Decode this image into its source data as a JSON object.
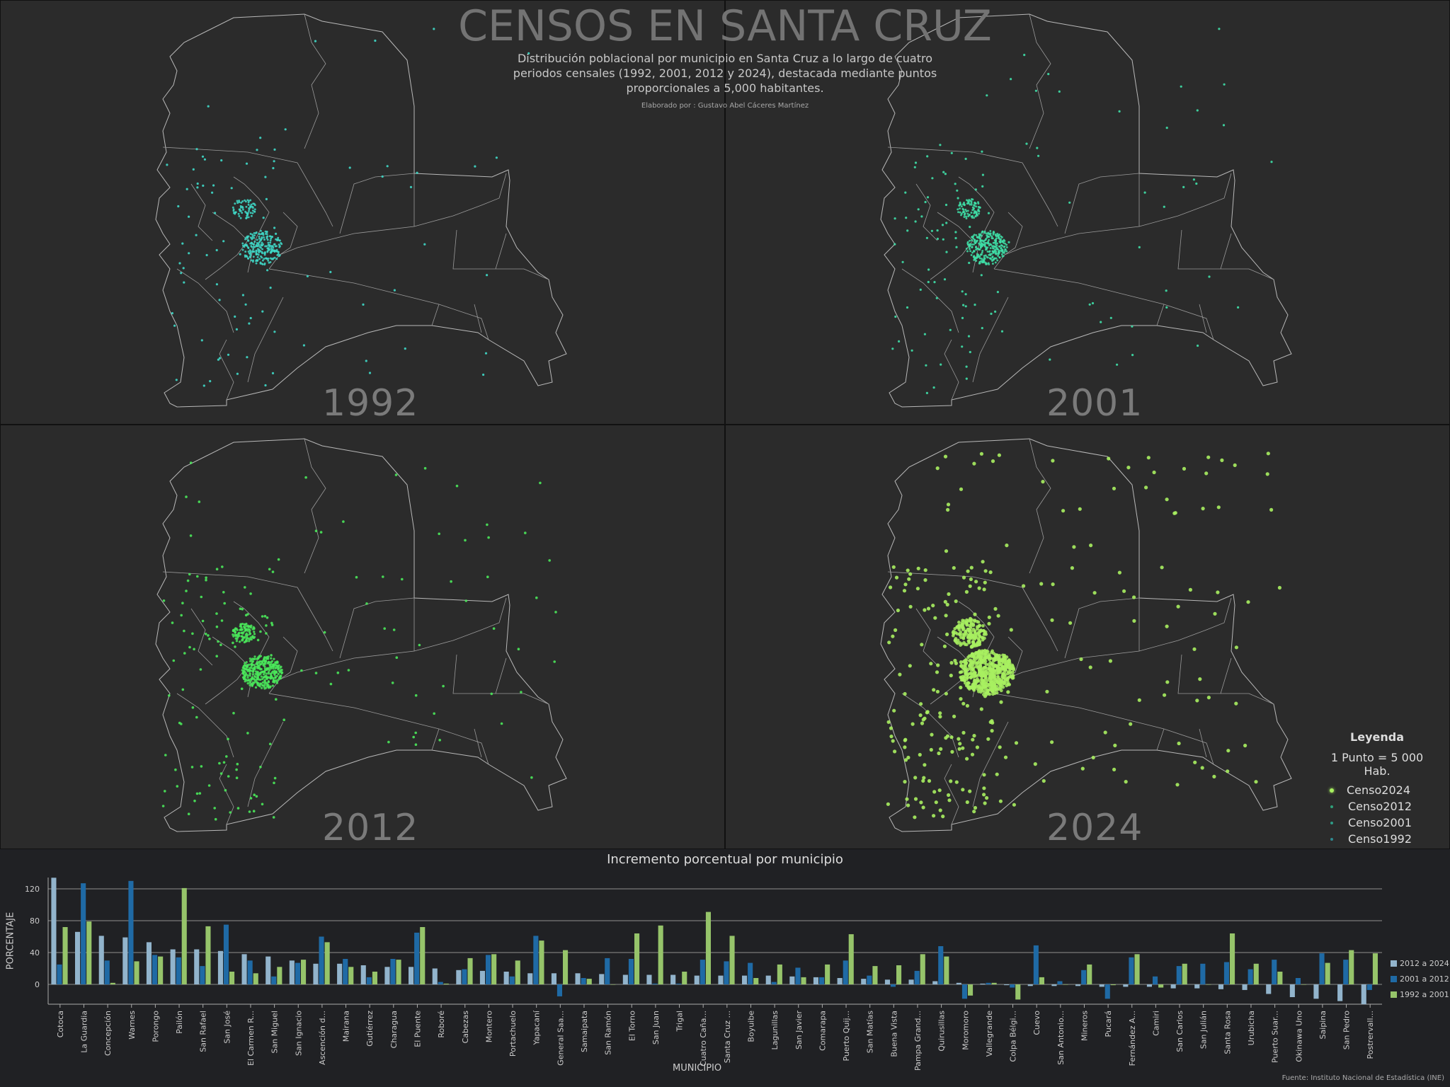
{
  "header": {
    "title": "CENSOS EN SANTA CRUZ",
    "subtitle": "Distribución poblacional por municipio en Santa Cruz a lo largo de cuatro periodos censales (1992, 2001, 2012 y 2024), destacada mediante puntos proporcionales a 5,000 habitantes.",
    "author": "Elaborado por : Gustavo Abel Cáceres Martínez"
  },
  "maps": [
    {
      "year": "1992",
      "dot_color": "#3fd9c8"
    },
    {
      "year": "2001",
      "dot_color": "#3fe0a8"
    },
    {
      "year": "2012",
      "dot_color": "#4ae85a"
    },
    {
      "year": "2024",
      "dot_color": "#a8f060"
    }
  ],
  "map_legend": {
    "title": "Leyenda",
    "scale": "1 Punto = 5 000 Hab.",
    "items": [
      {
        "label": "Censo2024",
        "color": "#a8f060"
      },
      {
        "label": "Censo2012",
        "color": "#2fa07a"
      },
      {
        "label": "Censo2001",
        "color": "#2f9a86"
      },
      {
        "label": "Censo1992",
        "color": "#2f8a90"
      }
    ]
  },
  "colors": {
    "background": "#202124",
    "panel": "#2b2b2b",
    "series_2012_2024": "#92b4cc",
    "series_2001_2012": "#1f6aa5",
    "series_1992_2001": "#96c46a"
  },
  "chart_data": {
    "type": "bar",
    "title": "Incremento porcentual por municipio",
    "xlabel": "MUNICIPIO",
    "ylabel": "PORCENTAJE",
    "ylim": [
      -25,
      135
    ],
    "yticks": [
      0,
      40,
      80,
      120
    ],
    "grid": true,
    "legend_position": "right",
    "source": "Fuente: Instituto Nacional de Estadística (INE)",
    "categories": [
      "Cotoca",
      "La Guardia",
      "Concepción",
      "Warnes",
      "Porongo",
      "Pailón",
      "San Rafael",
      "San José",
      "El Carmen R...",
      "San Miguel",
      "San Ignacio",
      "Ascención d...",
      "Mairana",
      "Gutiérrez",
      "Charagua",
      "El Puente",
      "Roboré",
      "Cabezas",
      "Montero",
      "Portachuelo",
      "Yapacaní",
      "General Saa...",
      "Samaipata",
      "San Ramón",
      "El Torno",
      "San Juan",
      "Trigal",
      "Cuatro Caña...",
      "Santa Cruz ...",
      "Boyuibe",
      "Lagunillas",
      "San Javier",
      "Comarapa",
      "Puerto Quij...",
      "San Matías",
      "Buena Vista",
      "Pampa Grand...",
      "Quirusillas",
      "Moromoro",
      "Vallegrande",
      "Colpa Bélgi...",
      "Cuevo",
      "San Antonio...",
      "Mineros",
      "Pucará",
      "Fernández A...",
      "Camiri",
      "San Carlos",
      "San Julián",
      "Santa Rosa",
      "Urubicha",
      "Puerto Suar...",
      "Okinawa Uno",
      "Saipina",
      "San Pedro",
      "Postrervall..."
    ],
    "series": [
      {
        "name": "2012 a 2024",
        "values": [
          134,
          66,
          61,
          59,
          53,
          44,
          44,
          42,
          38,
          35,
          30,
          26,
          26,
          24,
          22,
          22,
          20,
          18,
          17,
          16,
          14,
          14,
          14,
          13,
          12,
          12,
          12,
          11,
          11,
          11,
          11,
          10,
          9,
          8,
          7,
          6,
          6,
          4,
          2,
          1,
          -1,
          -2,
          -2,
          -2,
          -3,
          -3,
          -3,
          -5,
          -5,
          -6,
          -7,
          -12,
          -16,
          -18,
          -21,
          -25
        ]
      },
      {
        "name": "2001 a 2012",
        "values": [
          25,
          127,
          30,
          130,
          37,
          34,
          23,
          75,
          30,
          10,
          27,
          60,
          32,
          9,
          32,
          65,
          3,
          19,
          37,
          10,
          61,
          -15,
          8,
          33,
          32,
          1,
          1,
          31,
          29,
          27,
          3,
          21,
          9,
          30,
          11,
          -3,
          17,
          48,
          -18,
          2,
          -4,
          49,
          4,
          18,
          -18,
          34,
          10,
          23,
          26,
          28,
          19,
          31,
          8,
          39,
          31,
          -7
        ]
      },
      {
        "name": "1992 a 2001",
        "values": [
          72,
          79,
          2,
          29,
          35,
          121,
          73,
          16,
          14,
          22,
          31,
          53,
          22,
          16,
          31,
          72,
          1,
          33,
          38,
          30,
          55,
          43,
          7,
          0,
          64,
          74,
          16,
          91,
          61,
          8,
          25,
          9,
          25,
          63,
          23,
          24,
          38,
          35,
          -14,
          2,
          -19,
          9,
          0,
          25,
          -1,
          38,
          -4,
          26,
          0,
          64,
          26,
          16,
          0,
          27,
          43,
          39
        ]
      }
    ]
  }
}
